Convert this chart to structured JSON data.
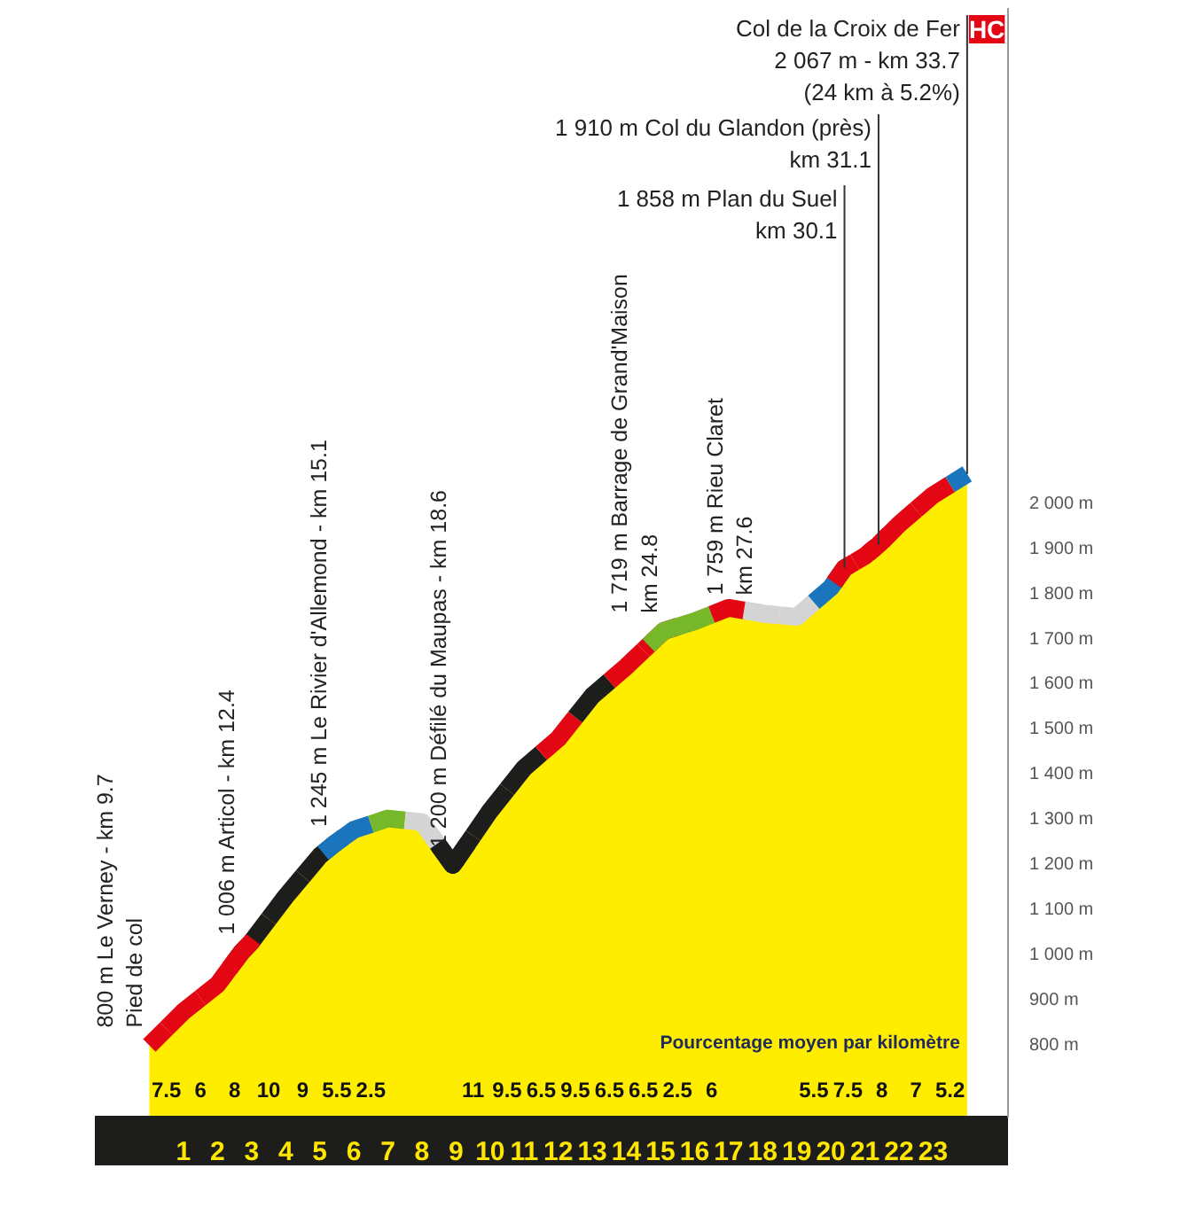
{
  "chart_data": {
    "type": "area",
    "xlim": [
      -1.6,
      25.2
    ],
    "ylim": [
      640,
      3100
    ],
    "xticks": [
      1,
      2,
      3,
      4,
      5,
      6,
      7,
      8,
      9,
      10,
      11,
      12,
      13,
      14,
      15,
      16,
      17,
      18,
      19,
      20,
      21,
      22,
      23
    ],
    "yticks": [
      {
        "value": 800,
        "label": "800 m"
      },
      {
        "value": 900,
        "label": "900 m"
      },
      {
        "value": 1000,
        "label": "1 000 m"
      },
      {
        "value": 1100,
        "label": "1 100 m"
      },
      {
        "value": 1200,
        "label": "1 200 m"
      },
      {
        "value": 1300,
        "label": "1 300 m"
      },
      {
        "value": 1400,
        "label": "1 400 m"
      },
      {
        "value": 1500,
        "label": "1 500 m"
      },
      {
        "value": 1600,
        "label": "1 600 m"
      },
      {
        "value": 1700,
        "label": "1 700 m"
      },
      {
        "value": 1800,
        "label": "1 800 m"
      },
      {
        "value": 1900,
        "label": "1 900 m"
      },
      {
        "value": 2000,
        "label": "2 000 m"
      }
    ],
    "series": [
      {
        "color": "#ffed00",
        "x": [
          0,
          1,
          2,
          2.7,
          3,
          4,
          5,
          5.4,
          6,
          7,
          8,
          8.9,
          9,
          10,
          11,
          12,
          13,
          14,
          15,
          15.1,
          16,
          17,
          17.9,
          18,
          19,
          20,
          20.4,
          21,
          21.4,
          22,
          23,
          24
        ],
        "values": [
          800,
          875,
          935,
          1006,
          1030,
          1130,
          1220,
          1245,
          1278,
          1303,
          1295,
          1200,
          1210,
          1320,
          1415,
          1480,
          1575,
          1640,
          1712,
          1719,
          1740,
          1770,
          1759,
          1757,
          1750,
          1815,
          1858,
          1885,
          1910,
          1955,
          2020,
          2067
        ],
        "colors": [
          "#e30613",
          "#e30613",
          "#e30613",
          "#e30613",
          "#1d1d1b",
          "#1d1d1b",
          "#1d1d1b",
          "#1b75bc",
          "#1b75bc",
          "#76b82a",
          "#d4d4d4",
          "#1d1d1b",
          "#1d1d1b",
          "#1d1d1b",
          "#1d1d1b",
          "#e30613",
          "#1d1d1b",
          "#e30613",
          "#e30613",
          "#76b82a",
          "#76b82a",
          "#e30613",
          "#d4d4d4",
          "#d4d4d4",
          "#d4d4d4",
          "#1b75bc",
          "#e30613",
          "#e30613",
          "#e30613",
          "#e30613",
          "#e30613",
          "#1b75bc"
        ]
      }
    ],
    "annotations": [
      "7.5",
      "6",
      "8",
      "10",
      "9",
      "5.5",
      "2.5",
      "11",
      "9.5",
      "6.5",
      "9.5",
      "6.5",
      "6.5",
      "2.5",
      "6",
      "5.5",
      "7.5",
      "8",
      "7",
      "5.2",
      "Pourcentage moyen par kilomètre",
      {
        "text": "800 m Le Verney - km 9.7\nPied de col",
        "x": 0,
        "y": 800
      },
      {
        "text": "1 006 m Articol - km 12.4",
        "x": 2.7,
        "y": 1006
      },
      {
        "text": "1 245 m Le Rivier d'Allemond - km 15.1",
        "x": 5.4,
        "y": 1245
      },
      {
        "text": "1 200 m Défilé du Maupas - km 18.6",
        "x": 8.9,
        "y": 1200
      },
      {
        "text": "1 719 m Barrage de Grand'Maison\nkm 24.8",
        "x": 15.1,
        "y": 1719
      },
      {
        "text": "1 759 m Rieu Claret\nkm 27.6",
        "x": 17.9,
        "y": 1759
      },
      {
        "text": "1 858 m Plan du Suel\nkm 30.1",
        "x": 20.4,
        "y": 1858
      },
      {
        "text": "1 910 m Col du Glandon (près)\nkm 31.1",
        "x": 21.4,
        "y": 1910
      },
      {
        "text": "Col de la Croix de Fer\n2 067 m - km 33.7\n(24 km à 5.2%)",
        "x": 24,
        "y": 2067
      },
      {
        "text": "HC",
        "x": 24,
        "y": 2067
      }
    ]
  }
}
